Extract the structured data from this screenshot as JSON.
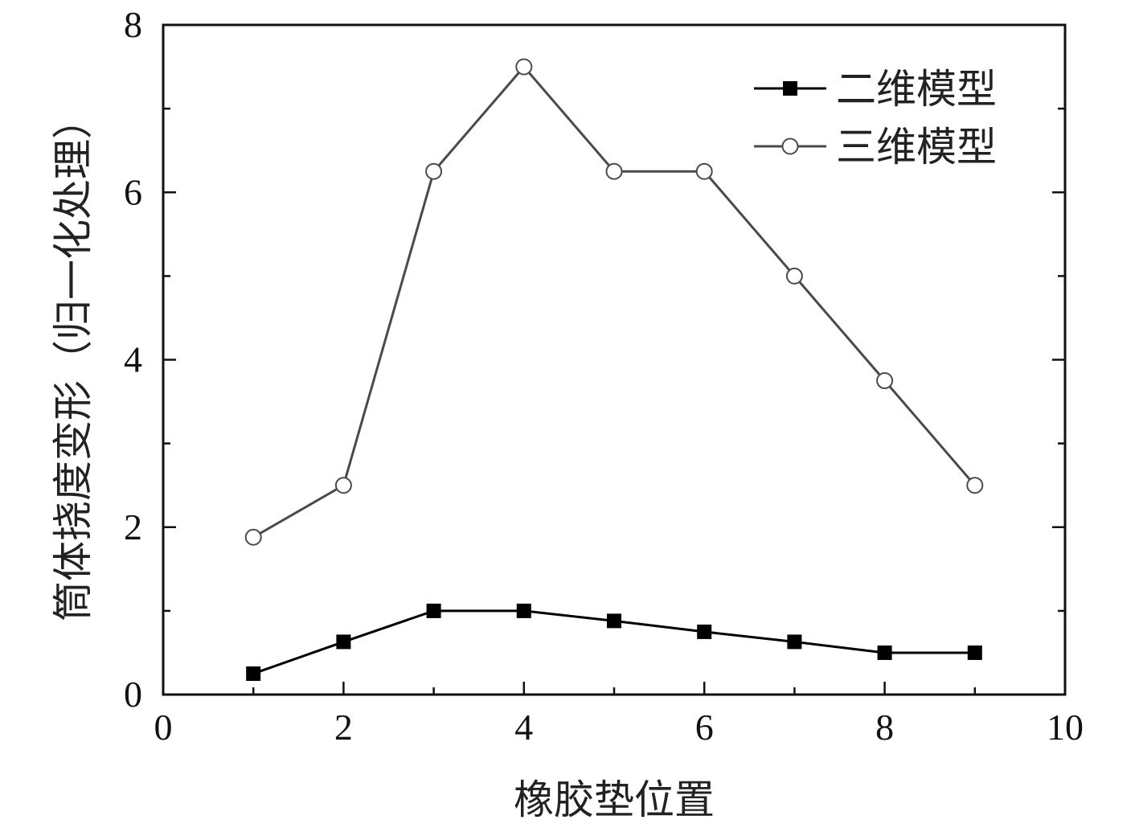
{
  "chart_data": {
    "type": "line",
    "title": "",
    "xlabel": "橡胶垫位置",
    "ylabel": "筒体挠度变形（归一化处理）",
    "xlim": [
      0,
      10
    ],
    "ylim": [
      0,
      8
    ],
    "x_ticks": [
      0,
      2,
      4,
      6,
      8,
      10
    ],
    "y_ticks": [
      0,
      2,
      4,
      6,
      8
    ],
    "x_tick_labels": [
      "0",
      "2",
      "4",
      "6",
      "8",
      "10"
    ],
    "y_tick_labels": [
      "0",
      "2",
      "4",
      "6",
      "8"
    ],
    "grid": false,
    "legend_position": "top-right",
    "series": [
      {
        "name": "二维模型",
        "marker": "filled-square",
        "color": "#000000",
        "x": [
          1,
          2,
          3,
          4,
          5,
          6,
          7,
          8,
          9
        ],
        "values": [
          0.25,
          0.63,
          1.0,
          1.0,
          0.88,
          0.75,
          0.63,
          0.5,
          0.5
        ]
      },
      {
        "name": "三维模型",
        "marker": "open-circle",
        "color": "#4a4a4a",
        "x": [
          1,
          2,
          3,
          4,
          5,
          6,
          7,
          8,
          9
        ],
        "values": [
          1.88,
          2.5,
          6.25,
          7.5,
          6.25,
          6.25,
          5.0,
          3.75,
          2.5
        ]
      }
    ]
  }
}
